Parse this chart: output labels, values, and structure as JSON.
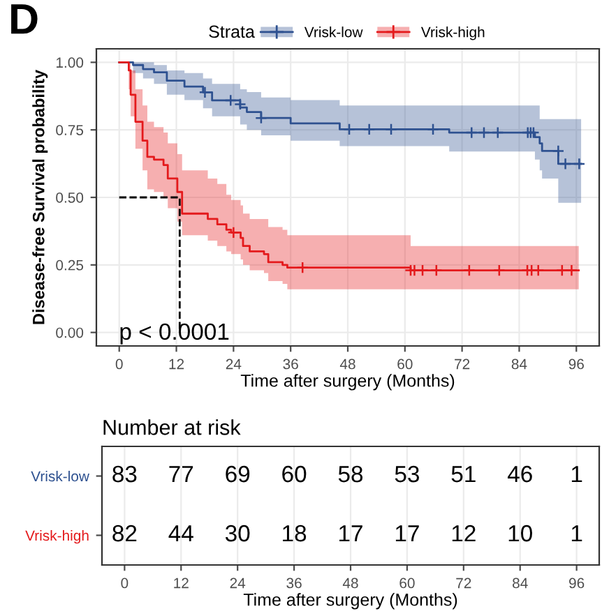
{
  "chart_data": [
    {
      "type": "step",
      "title": "D",
      "xlabel": "Time after surgery (Months)",
      "ylabel": "Disease-free Survival probability",
      "legend_title": "Strata",
      "legend": "top",
      "xlim": [
        -4.8,
        100.8
      ],
      "xticks": [
        0,
        12,
        24,
        36,
        48,
        60,
        72,
        84,
        96
      ],
      "ylim": [
        -0.05,
        1.05
      ],
      "yticks": [
        {
          "value": 0,
          "label": "0.00"
        },
        {
          "value": 0.25,
          "label": "0.25"
        },
        {
          "value": 0.5,
          "label": "0.50"
        },
        {
          "value": 0.75,
          "label": "0.75"
        },
        {
          "value": 1,
          "label": "1.00"
        }
      ],
      "grid": true,
      "annotations": [
        "p < 0.0001"
      ],
      "series": [
        {
          "name": "Vrisk-low",
          "type": "step",
          "color": "#2e5190",
          "x": [
            0,
            2.9,
            5,
            7.3,
            10,
            13.7,
            17.6,
            19.5,
            25.4,
            26.8,
            29.8,
            36,
            46.3,
            69.3,
            87.3,
            88.3,
            88.8,
            92.2,
            97
          ],
          "values": [
            1,
            0.99,
            0.975,
            0.963,
            0.932,
            0.91,
            0.889,
            0.859,
            0.833,
            0.816,
            0.794,
            0.774,
            0.752,
            0.74,
            0.723,
            0.7,
            0.672,
            0.624,
            0.624
          ],
          "lower": [
            1,
            0.96,
            0.94,
            0.92,
            0.88,
            0.86,
            0.83,
            0.8,
            0.77,
            0.75,
            0.73,
            0.71,
            0.69,
            0.67,
            0.64,
            0.6,
            0.57,
            0.48,
            0.48
          ],
          "upper": [
            1,
            1,
            1,
            0.99,
            0.97,
            0.96,
            0.94,
            0.92,
            0.9,
            0.89,
            0.87,
            0.86,
            0.84,
            0.84,
            0.84,
            0.79,
            0.79,
            0.79,
            0.79
          ]
        },
        {
          "name": "Vrisk-high",
          "type": "step",
          "color": "#e41a1c",
          "x": [
            0,
            1.5,
            2,
            2.4,
            3.4,
            4.9,
            5.9,
            7.3,
            9.3,
            10.2,
            12.2,
            13.2,
            18.6,
            20.6,
            22.5,
            23.5,
            25.5,
            26,
            27.4,
            30.4,
            31.3,
            34.3,
            35.3,
            61.2,
            96.5
          ],
          "values": [
            1,
            1,
            0.97,
            0.88,
            0.78,
            0.71,
            0.65,
            0.64,
            0.62,
            0.57,
            0.52,
            0.44,
            0.42,
            0.4,
            0.38,
            0.37,
            0.35,
            0.32,
            0.3,
            0.29,
            0.26,
            0.25,
            0.24,
            0.23,
            0.23
          ],
          "lower": [
            1,
            1,
            0.9,
            0.8,
            0.68,
            0.6,
            0.53,
            0.52,
            0.5,
            0.46,
            0.41,
            0.36,
            0.34,
            0.32,
            0.3,
            0.29,
            0.27,
            0.25,
            0.23,
            0.22,
            0.19,
            0.18,
            0.16,
            0.16,
            0.16
          ],
          "upper": [
            1,
            1,
            1,
            0.97,
            0.9,
            0.84,
            0.78,
            0.76,
            0.74,
            0.7,
            0.66,
            0.6,
            0.57,
            0.55,
            0.51,
            0.49,
            0.47,
            0.44,
            0.42,
            0.42,
            0.39,
            0.38,
            0.36,
            0.32,
            0.32
          ]
        },
        {
          "type": "scatter",
          "marker": "cross",
          "color": "#2e5190",
          "x": [
            18,
            23.4,
            25.4,
            29.8,
            48.3,
            52.5,
            57.1,
            65.9,
            74,
            76.6,
            79.5,
            85.8,
            86.4,
            87,
            92.2,
            93.7,
            96.6
          ],
          "values": [
            0.889,
            0.859,
            0.845,
            0.794,
            0.752,
            0.752,
            0.752,
            0.752,
            0.74,
            0.74,
            0.74,
            0.74,
            0.74,
            0.74,
            0.672,
            0.624,
            0.624
          ]
        },
        {
          "type": "scatter",
          "marker": "cross",
          "color": "#e41a1c",
          "x": [
            24,
            38.5,
            61.2,
            62,
            63.7,
            66.6,
            73.5,
            79.8,
            85.7,
            86.6,
            88,
            93,
            95
          ],
          "values": [
            0.37,
            0.24,
            0.23,
            0.23,
            0.23,
            0.23,
            0.23,
            0.23,
            0.23,
            0.23,
            0.23,
            0.23,
            0.23
          ]
        },
        {
          "type": "line",
          "line_style": "dashed",
          "color": "#000000",
          "x": [
            0,
            12.7,
            12.7
          ],
          "values": [
            0.5,
            0.5,
            0
          ]
        }
      ]
    },
    {
      "type": "heatmap",
      "title": "Number at risk",
      "xlabel": "Time after surgery (Months)",
      "data_labels": true,
      "grid": "x",
      "categories": [
        "0",
        "12",
        "24",
        "36",
        "48",
        "60",
        "72",
        "84",
        "96"
      ],
      "y_categories": [
        "Vrisk-low",
        "Vrisk-high"
      ],
      "colors": [
        "#2e5190",
        "#e41a1c"
      ],
      "cells": [
        [
          83,
          77,
          69,
          60,
          58,
          53,
          51,
          46,
          1
        ],
        [
          82,
          44,
          30,
          18,
          17,
          17,
          12,
          10,
          1
        ]
      ]
    }
  ]
}
